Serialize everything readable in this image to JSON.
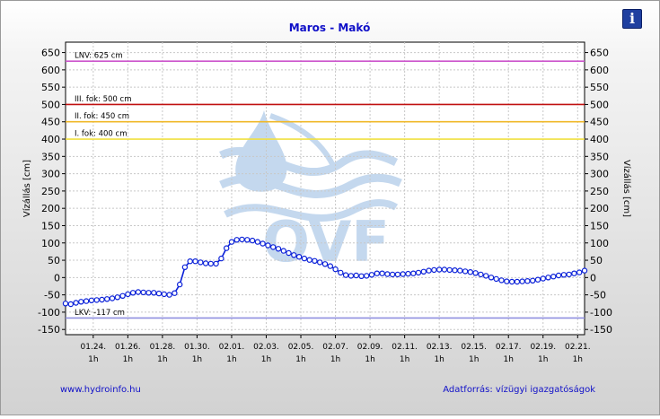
{
  "header": {
    "info_icon_glyph": "i"
  },
  "footer": {
    "left_link": "www.hydroinfo.hu",
    "right_text": "Adatforrás: vízügyi igazgatóságok"
  },
  "colors": {
    "series": "#0a20d8",
    "lnv": "#cc55cc",
    "level3": "#c01010",
    "level2": "#f0b828",
    "level1": "#f0e040",
    "lkv": "#9090e0",
    "watermark": "#bcd4ec"
  },
  "icons": {
    "info": "info-icon",
    "watermark": "ovf-logo-watermark"
  },
  "watermark_text": "OVF",
  "chart_data": {
    "type": "line",
    "title": "Maros - Makó",
    "ylabel_left": "Vízállás [cm]",
    "ylabel_right": "Vízállás [cm]",
    "ylim": [
      -165,
      680
    ],
    "yticks": [
      -150,
      -100,
      -50,
      0,
      50,
      100,
      150,
      200,
      250,
      300,
      350,
      400,
      450,
      500,
      550,
      600,
      650
    ],
    "grid": true,
    "x_range_days": [
      -1.6,
      28.4
    ],
    "xticks": [
      {
        "date": "01.24.",
        "time": "1h",
        "day": 0
      },
      {
        "date": "01.26.",
        "time": "1h",
        "day": 2
      },
      {
        "date": "01.28.",
        "time": "1h",
        "day": 4
      },
      {
        "date": "01.30.",
        "time": "1h",
        "day": 6
      },
      {
        "date": "02.01.",
        "time": "1h",
        "day": 8
      },
      {
        "date": "02.03.",
        "time": "1h",
        "day": 10
      },
      {
        "date": "02.05.",
        "time": "1h",
        "day": 12
      },
      {
        "date": "02.07.",
        "time": "1h",
        "day": 14
      },
      {
        "date": "02.09.",
        "time": "1h",
        "day": 16
      },
      {
        "date": "02.11.",
        "time": "1h",
        "day": 18
      },
      {
        "date": "02.13.",
        "time": "1h",
        "day": 20
      },
      {
        "date": "02.15.",
        "time": "1h",
        "day": 22
      },
      {
        "date": "02.17.",
        "time": "1h",
        "day": 24
      },
      {
        "date": "02.19.",
        "time": "1h",
        "day": 26
      },
      {
        "date": "02.21.",
        "time": "1h",
        "day": 28
      }
    ],
    "reference_lines": [
      {
        "label": "LNV: 625 cm",
        "value": 625,
        "color": "#cc55cc"
      },
      {
        "label": "III. fok: 500 cm",
        "value": 500,
        "color": "#c01010"
      },
      {
        "label": "II. fok: 450 cm",
        "value": 450,
        "color": "#f0b828"
      },
      {
        "label": "I. fok: 400 cm",
        "value": 400,
        "color": "#f0e040"
      },
      {
        "label": "LKV: -117 cm",
        "value": -117,
        "color": "#9090e0"
      }
    ],
    "series": [
      {
        "points": [
          [
            -1.6,
            -75
          ],
          [
            -1.3,
            -77
          ],
          [
            -1.0,
            -73
          ],
          [
            -0.7,
            -70
          ],
          [
            -0.4,
            -68
          ],
          [
            -0.1,
            -66
          ],
          [
            0.2,
            -65
          ],
          [
            0.5,
            -64
          ],
          [
            0.8,
            -62
          ],
          [
            1.1,
            -60
          ],
          [
            1.4,
            -57
          ],
          [
            1.7,
            -53
          ],
          [
            2.0,
            -48
          ],
          [
            2.3,
            -44
          ],
          [
            2.6,
            -42
          ],
          [
            2.9,
            -43
          ],
          [
            3.2,
            -44
          ],
          [
            3.5,
            -44
          ],
          [
            3.8,
            -46
          ],
          [
            4.1,
            -48
          ],
          [
            4.4,
            -50
          ],
          [
            4.7,
            -45
          ],
          [
            5.0,
            -20
          ],
          [
            5.3,
            30
          ],
          [
            5.6,
            47
          ],
          [
            5.9,
            47
          ],
          [
            6.2,
            44
          ],
          [
            6.5,
            41
          ],
          [
            6.8,
            40
          ],
          [
            7.1,
            40
          ],
          [
            7.4,
            55
          ],
          [
            7.7,
            85
          ],
          [
            8.0,
            103
          ],
          [
            8.3,
            109
          ],
          [
            8.6,
            110
          ],
          [
            8.9,
            109
          ],
          [
            9.2,
            107
          ],
          [
            9.5,
            103
          ],
          [
            9.8,
            98
          ],
          [
            10.1,
            93
          ],
          [
            10.4,
            88
          ],
          [
            10.7,
            83
          ],
          [
            11.0,
            77
          ],
          [
            11.3,
            71
          ],
          [
            11.6,
            65
          ],
          [
            11.9,
            60
          ],
          [
            12.2,
            55
          ],
          [
            12.5,
            51
          ],
          [
            12.8,
            48
          ],
          [
            13.1,
            44
          ],
          [
            13.4,
            39
          ],
          [
            13.7,
            33
          ],
          [
            14.0,
            24
          ],
          [
            14.3,
            14
          ],
          [
            14.6,
            7
          ],
          [
            14.9,
            5
          ],
          [
            15.2,
            6
          ],
          [
            15.5,
            4
          ],
          [
            15.8,
            5
          ],
          [
            16.1,
            8
          ],
          [
            16.4,
            12
          ],
          [
            16.7,
            12
          ],
          [
            17.0,
            10
          ],
          [
            17.3,
            9
          ],
          [
            17.6,
            9
          ],
          [
            17.9,
            10
          ],
          [
            18.2,
            11
          ],
          [
            18.5,
            12
          ],
          [
            18.8,
            14
          ],
          [
            19.1,
            17
          ],
          [
            19.4,
            20
          ],
          [
            19.7,
            22
          ],
          [
            20.0,
            23
          ],
          [
            20.3,
            23
          ],
          [
            20.6,
            22
          ],
          [
            20.9,
            21
          ],
          [
            21.2,
            20
          ],
          [
            21.5,
            18
          ],
          [
            21.8,
            16
          ],
          [
            22.1,
            13
          ],
          [
            22.4,
            9
          ],
          [
            22.7,
            5
          ],
          [
            23.0,
            0
          ],
          [
            23.3,
            -4
          ],
          [
            23.6,
            -8
          ],
          [
            23.9,
            -11
          ],
          [
            24.2,
            -12
          ],
          [
            24.5,
            -12
          ],
          [
            24.8,
            -11
          ],
          [
            25.1,
            -10
          ],
          [
            25.4,
            -9
          ],
          [
            25.7,
            -6
          ],
          [
            26.0,
            -3
          ],
          [
            26.3,
            0
          ],
          [
            26.6,
            3
          ],
          [
            26.9,
            6
          ],
          [
            27.2,
            8
          ],
          [
            27.5,
            9
          ],
          [
            27.8,
            12
          ],
          [
            28.1,
            15
          ],
          [
            28.4,
            20
          ]
        ]
      }
    ]
  }
}
